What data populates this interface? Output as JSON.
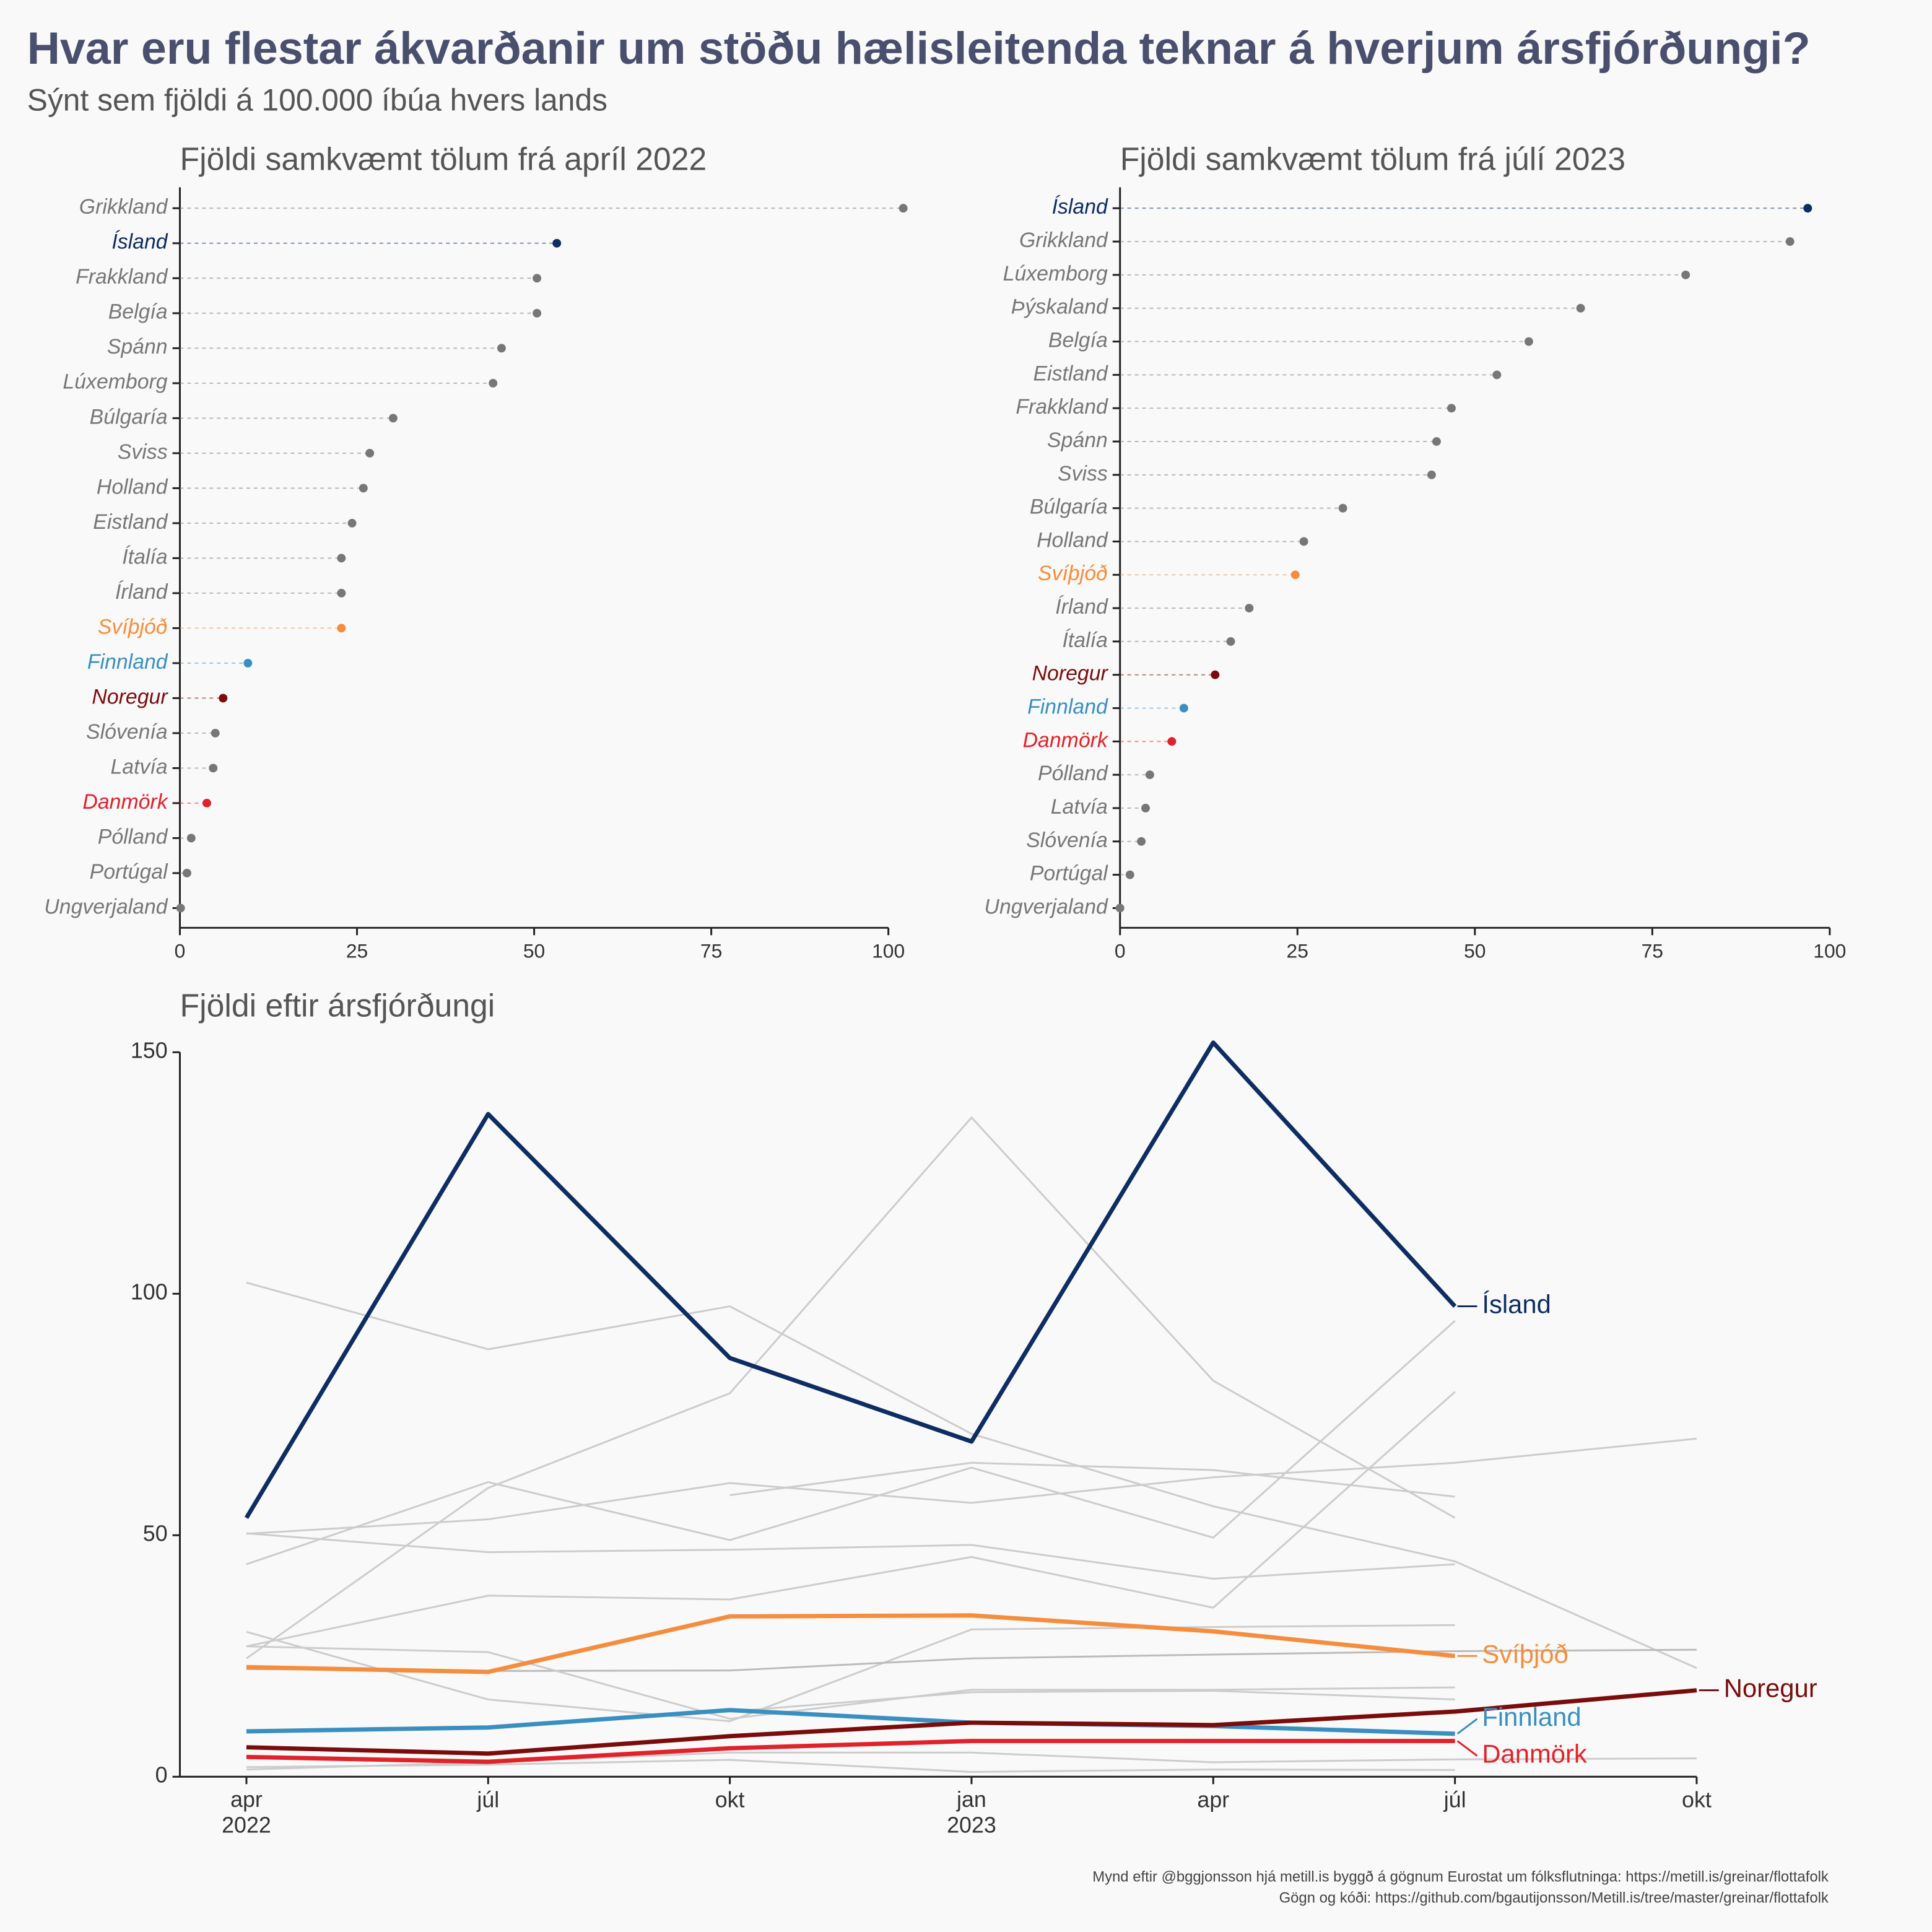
{
  "title": "Hvar eru flestar ákvarðanir um stöðu hælisleitenda teknar á hverjum ársfjórðungi?",
  "subtitle": "Sýnt sem fjöldi á 100.000 íbúa hvers lands",
  "caption": [
    "Mynd eftir @bggjonsson hjá metill.is byggð á gögnum Eurostat um fólksflutninga: https://metill.is/greinar/flottafolk",
    "Gögn og kóði: https://github.com/bgautijonsson/Metill.is/tree/master/greinar/flottafolk"
  ],
  "chart_data": [
    {
      "type": "lollipop",
      "title": "Fjöldi samkvæmt tölum frá apríl 2022",
      "categories": [
        "Grikkland",
        "Ísland",
        "Frakkland",
        "Belgía",
        "Spánn",
        "Lúxemborg",
        "Búlgaría",
        "Sviss",
        "Holland",
        "Eistland",
        "Ítalía",
        "Írland",
        "Svíþjóð",
        "Finnland",
        "Noregur",
        "Slóvenía",
        "Latvía",
        "Danmörk",
        "Pólland",
        "Portúgal",
        "Ungverjaland"
      ],
      "values": [
        102.1,
        53.2,
        50.4,
        50.4,
        45.4,
        44.2,
        30.1,
        26.8,
        25.9,
        24.3,
        22.8,
        22.8,
        22.8,
        9.6,
        6.1,
        5.0,
        4.7,
        3.8,
        1.6,
        1.0,
        0.1
      ],
      "colors": [
        "#777777",
        "#0d2d63",
        "#777777",
        "#777777",
        "#777777",
        "#777777",
        "#777777",
        "#777777",
        "#777777",
        "#777777",
        "#777777",
        "#777777",
        "#f58d3e",
        "#3a8fc0",
        "#7a0c0c",
        "#777777",
        "#777777",
        "#e0222a",
        "#777777",
        "#777777",
        "#777777"
      ],
      "xlim": [
        0,
        100
      ],
      "xticks": [
        0,
        25,
        50,
        75,
        100
      ]
    },
    {
      "type": "lollipop",
      "title": "Fjöldi samkvæmt tölum frá júlí 2023",
      "categories": [
        "Ísland",
        "Grikkland",
        "Lúxemborg",
        "Þýskaland",
        "Belgía",
        "Eistland",
        "Frakkland",
        "Spánn",
        "Sviss",
        "Búlgaría",
        "Holland",
        "Svíþjóð",
        "Írland",
        "Ítalía",
        "Noregur",
        "Finnland",
        "Danmörk",
        "Pólland",
        "Latvía",
        "Slóvenía",
        "Portúgal",
        "Ungverjaland"
      ],
      "values": [
        96.9,
        94.4,
        79.7,
        64.9,
        57.6,
        53.1,
        46.7,
        44.6,
        43.9,
        31.4,
        25.9,
        24.7,
        18.2,
        15.6,
        13.4,
        9.0,
        7.3,
        4.2,
        3.6,
        3.0,
        1.4,
        0
      ],
      "colors": [
        "#0d2d63",
        "#777777",
        "#777777",
        "#777777",
        "#777777",
        "#777777",
        "#777777",
        "#777777",
        "#777777",
        "#777777",
        "#777777",
        "#f58d3e",
        "#777777",
        "#777777",
        "#7a0c0c",
        "#3a8fc0",
        "#e0222a",
        "#777777",
        "#777777",
        "#777777",
        "#777777",
        "#777777"
      ],
      "xlim": [
        0,
        100
      ],
      "xticks": [
        0,
        25,
        50,
        75,
        100
      ]
    },
    {
      "type": "line",
      "title": "Fjöldi eftir ársfjórðungi",
      "categories": [
        "apr\n2022",
        "júl",
        "okt",
        "jan\n2023",
        "apr",
        "júl",
        "okt"
      ],
      "ylim": [
        0,
        150
      ],
      "yticks": [
        0,
        50,
        100,
        150
      ],
      "series": [
        {
          "color": "#cccccc",
          "values": [
            102.3,
            88.5,
            97.4,
            71,
            56,
            44.6,
            22.5
          ]
        },
        {
          "color": "#cccccc",
          "values": [
            24.5,
            59.8,
            79.4,
            136.5,
            82,
            53.6,
            null
          ]
        },
        {
          "color": "#cccccc",
          "values": [
            null,
            null,
            58.3,
            65,
            63.5,
            58,
            null
          ]
        },
        {
          "color": "#cccccc",
          "values": [
            50.3,
            53.3,
            60.8,
            56.7,
            62,
            65,
            70
          ]
        },
        {
          "color": "#cccccc",
          "values": [
            50.4,
            46.5,
            47,
            48,
            41,
            44,
            null
          ]
        },
        {
          "color": "#cccccc",
          "values": [
            44,
            61,
            49,
            64,
            49.5,
            94.4,
            null
          ]
        },
        {
          "color": "#cccccc",
          "values": [
            27,
            37.5,
            36.7,
            45.5,
            35,
            79.7,
            null
          ]
        },
        {
          "color": "#cccccc",
          "values": [
            30,
            16,
            11.5,
            30.5,
            31,
            31.4,
            null
          ]
        },
        {
          "color": "#bbbbbb",
          "values": [
            22.3,
            21.9,
            22,
            24.5,
            25.3,
            26,
            26.3
          ]
        },
        {
          "color": "#cccccc",
          "values": [
            27,
            25.8,
            12,
            18,
            18,
            18.5,
            null
          ]
        },
        {
          "color": "#cccccc",
          "values": [
            null,
            null,
            13.5,
            17.5,
            17.8,
            16,
            null
          ]
        },
        {
          "color": "#cccccc",
          "values": [
            1.5,
            3,
            5,
            5,
            3,
            3.6,
            3.8
          ]
        },
        {
          "color": "#cccccc",
          "values": [
            2,
            2.5,
            3.5,
            1,
            1.5,
            1.4,
            null
          ]
        },
        {
          "name": "Svíþjóð",
          "color": "#f58d3e",
          "values": [
            22.7,
            21.7,
            33.2,
            33.4,
            30.1,
            25.0,
            null
          ]
        },
        {
          "name": "Finnland",
          "color": "#3a8fc0",
          "values": [
            9.4,
            10.2,
            13.8,
            11.2,
            10.5,
            8.9,
            null
          ]
        },
        {
          "name": "Danmörk",
          "color": "#e0222a",
          "values": [
            4.1,
            3.1,
            5.9,
            7.4,
            7.4,
            7.4,
            null
          ]
        },
        {
          "name": "Noregur",
          "color": "#7a0c0c",
          "values": [
            6.1,
            4.8,
            8.4,
            11.2,
            10.7,
            13.5,
            17.9
          ]
        },
        {
          "name": "Ísland",
          "color": "#0d2d63",
          "values": [
            53.6,
            137.2,
            86.7,
            69.4,
            152,
            97.4,
            null
          ]
        }
      ]
    }
  ]
}
